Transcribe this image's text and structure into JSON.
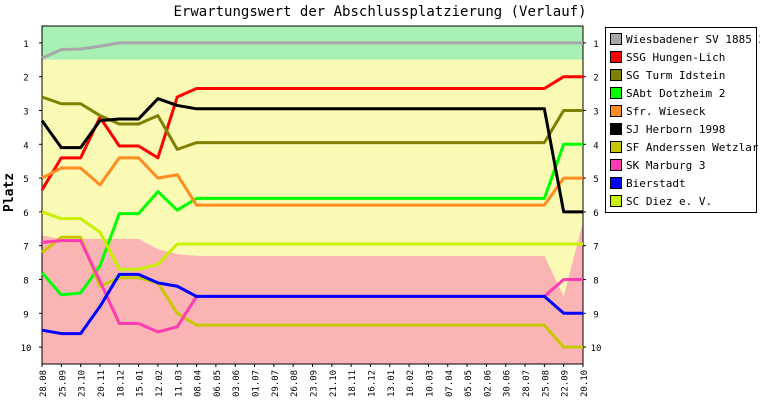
{
  "chart_data": {
    "type": "line",
    "title": "Erwartungswert der Abschlussplatzierung (Verlauf)",
    "xlabel": "",
    "ylabel": "Platz",
    "x": [
      "28.08",
      "25.09",
      "23.10",
      "20.11",
      "18.12",
      "15.01",
      "12.02",
      "11.03",
      "08.04",
      "06.05",
      "03.06",
      "01.07",
      "29.07",
      "26.08",
      "23.09",
      "21.10",
      "18.11",
      "16.12",
      "13.01",
      "10.02",
      "10.03",
      "07.04",
      "05.05",
      "02.06",
      "30.06",
      "28.07",
      "25.08",
      "22.09",
      "20.10"
    ],
    "y_ticks": [
      1,
      2,
      3,
      4,
      5,
      6,
      7,
      8,
      9,
      10
    ],
    "ylim": [
      10.5,
      0.5
    ],
    "y_inverted": true,
    "grid": false,
    "legend_position": "right",
    "bands": [
      {
        "color": "#a8f0b4",
        "to": [
          1.5,
          1.5,
          1.5,
          1.5,
          1.5,
          1.5,
          1.5,
          1.5,
          1.5,
          1.5,
          1.5,
          1.5,
          1.5,
          1.5,
          1.5,
          1.5,
          1.5,
          1.5,
          1.5,
          1.5,
          1.5,
          1.5,
          1.5,
          1.5,
          1.5,
          1.5,
          1.5,
          1.5,
          1.5
        ]
      },
      {
        "color": "#fafab4",
        "to": [
          6.7,
          6.8,
          6.8,
          6.8,
          6.8,
          6.8,
          7.1,
          7.25,
          7.3,
          7.3,
          7.3,
          7.3,
          7.3,
          7.3,
          7.3,
          7.3,
          7.3,
          7.3,
          7.3,
          7.3,
          7.3,
          7.3,
          7.3,
          7.3,
          7.3,
          7.3,
          7.3,
          8.5,
          6.3
        ]
      },
      {
        "color": "#fab4b4",
        "to": [
          10.5,
          10.5,
          10.5,
          10.5,
          10.5,
          10.5,
          10.5,
          10.5,
          10.5,
          10.5,
          10.5,
          10.5,
          10.5,
          10.5,
          10.5,
          10.5,
          10.5,
          10.5,
          10.5,
          10.5,
          10.5,
          10.5,
          10.5,
          10.5,
          10.5,
          10.5,
          10.5,
          10.5,
          10.5
        ]
      }
    ],
    "series": [
      {
        "name": "Wiesbadener SV 1885 2",
        "color": "#a8a8a8",
        "values": [
          1.45,
          1.2,
          1.18,
          1.1,
          1.0,
          1.0,
          1.0,
          1.0,
          1.0,
          1.0,
          1.0,
          1.0,
          1.0,
          1.0,
          1.0,
          1.0,
          1.0,
          1.0,
          1.0,
          1.0,
          1.0,
          1.0,
          1.0,
          1.0,
          1.0,
          1.0,
          1.0,
          1.0,
          1.0
        ]
      },
      {
        "name": "SSG Hungen-Lich",
        "color": "#ff0000",
        "values": [
          5.35,
          4.4,
          4.4,
          3.2,
          4.05,
          4.05,
          4.4,
          2.6,
          2.35,
          2.35,
          2.35,
          2.35,
          2.35,
          2.35,
          2.35,
          2.35,
          2.35,
          2.35,
          2.35,
          2.35,
          2.35,
          2.35,
          2.35,
          2.35,
          2.35,
          2.35,
          2.35,
          2.0,
          2.0
        ]
      },
      {
        "name": "SG Turm Idstein",
        "color": "#808000",
        "values": [
          2.6,
          2.8,
          2.8,
          3.15,
          3.4,
          3.4,
          3.15,
          4.15,
          3.95,
          3.95,
          3.95,
          3.95,
          3.95,
          3.95,
          3.95,
          3.95,
          3.95,
          3.95,
          3.95,
          3.95,
          3.95,
          3.95,
          3.95,
          3.95,
          3.95,
          3.95,
          3.95,
          3.0,
          3.0
        ]
      },
      {
        "name": "SAbt Dotzheim 2",
        "color": "#00ff00",
        "values": [
          7.8,
          8.45,
          8.4,
          7.6,
          6.05,
          6.05,
          5.4,
          5.95,
          5.6,
          5.6,
          5.6,
          5.6,
          5.6,
          5.6,
          5.6,
          5.6,
          5.6,
          5.6,
          5.6,
          5.6,
          5.6,
          5.6,
          5.6,
          5.6,
          5.6,
          5.6,
          5.6,
          4.0,
          4.0
        ]
      },
      {
        "name": "Sfr. Wieseck",
        "color": "#ff8c1e",
        "values": [
          5.0,
          4.7,
          4.7,
          5.2,
          4.4,
          4.4,
          5.0,
          4.9,
          5.8,
          5.8,
          5.8,
          5.8,
          5.8,
          5.8,
          5.8,
          5.8,
          5.8,
          5.8,
          5.8,
          5.8,
          5.8,
          5.8,
          5.8,
          5.8,
          5.8,
          5.8,
          5.8,
          5.0,
          5.0
        ]
      },
      {
        "name": "SJ Herborn 1998",
        "color": "#000000",
        "values": [
          3.3,
          4.1,
          4.1,
          3.3,
          3.25,
          3.25,
          2.65,
          2.85,
          2.95,
          2.95,
          2.95,
          2.95,
          2.95,
          2.95,
          2.95,
          2.95,
          2.95,
          2.95,
          2.95,
          2.95,
          2.95,
          2.95,
          2.95,
          2.95,
          2.95,
          2.95,
          2.95,
          6.0,
          6.0
        ]
      },
      {
        "name": "SF Anderssen Wetzlar",
        "color": "#c8c800",
        "values": [
          7.2,
          6.75,
          6.75,
          8.2,
          7.95,
          7.95,
          8.1,
          9.0,
          9.35,
          9.35,
          9.35,
          9.35,
          9.35,
          9.35,
          9.35,
          9.35,
          9.35,
          9.35,
          9.35,
          9.35,
          9.35,
          9.35,
          9.35,
          9.35,
          9.35,
          9.35,
          9.35,
          10.0,
          10.0
        ]
      },
      {
        "name": "SK Marburg 3",
        "color": "#ff3cb4",
        "values": [
          6.9,
          6.85,
          6.85,
          8.05,
          9.3,
          9.3,
          9.55,
          9.4,
          8.5,
          8.5,
          8.5,
          8.5,
          8.5,
          8.5,
          8.5,
          8.5,
          8.5,
          8.5,
          8.5,
          8.5,
          8.5,
          8.5,
          8.5,
          8.5,
          8.5,
          8.5,
          8.5,
          8.0,
          8.0
        ]
      },
      {
        "name": "Bierstadt",
        "color": "#0000ff",
        "values": [
          9.5,
          9.6,
          9.6,
          8.8,
          7.85,
          7.85,
          8.1,
          8.2,
          8.5,
          8.5,
          8.5,
          8.5,
          8.5,
          8.5,
          8.5,
          8.5,
          8.5,
          8.5,
          8.5,
          8.5,
          8.5,
          8.5,
          8.5,
          8.5,
          8.5,
          8.5,
          8.5,
          9.0,
          9.0
        ]
      },
      {
        "name": "SC Diez e. V.",
        "color": "#c8f000",
        "values": [
          6.0,
          6.2,
          6.2,
          6.6,
          7.7,
          7.7,
          7.55,
          6.95,
          6.95,
          6.95,
          6.95,
          6.95,
          6.95,
          6.95,
          6.95,
          6.95,
          6.95,
          6.95,
          6.95,
          6.95,
          6.95,
          6.95,
          6.95,
          6.95,
          6.95,
          6.95,
          6.95,
          6.95,
          6.95
        ]
      }
    ]
  }
}
